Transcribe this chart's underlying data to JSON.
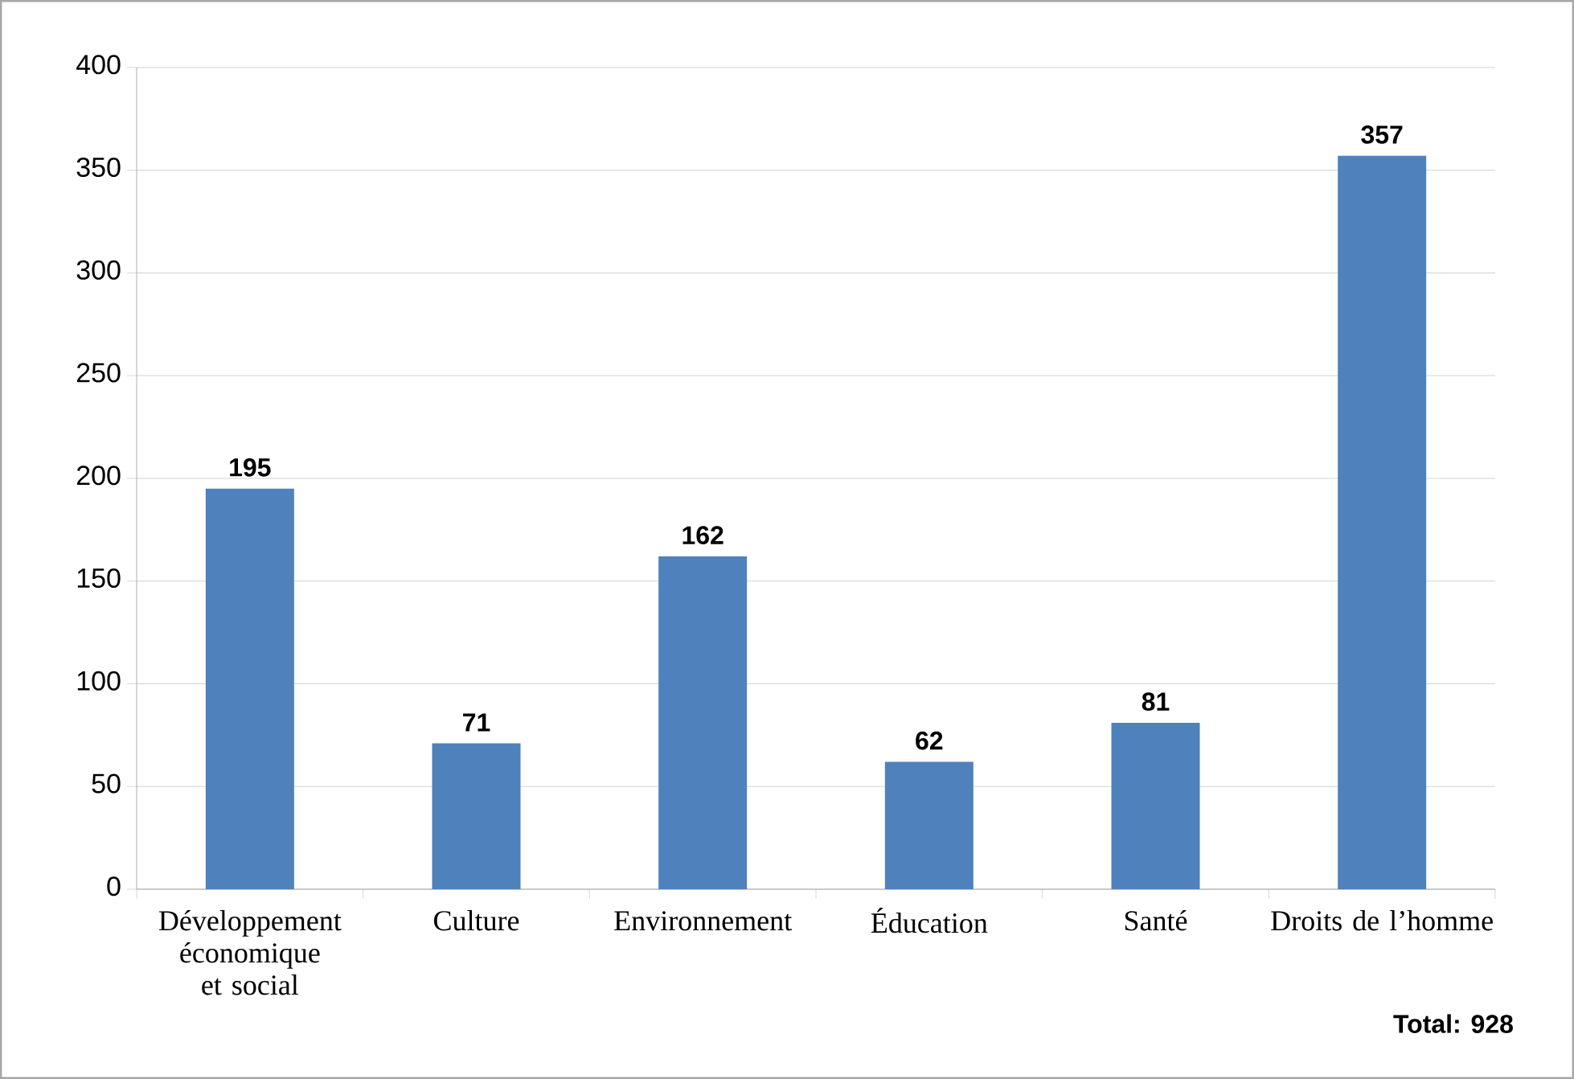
{
  "chart_data": {
    "type": "bar",
    "categories": [
      "Développement économique et social",
      "Culture",
      "Environnement",
      "Éducation",
      "Santé",
      "Droits de l’homme"
    ],
    "values": [
      195,
      71,
      162,
      62,
      81,
      357
    ],
    "color": "#4f81bd",
    "ylim": [
      0,
      400
    ],
    "yticks": [
      0,
      50,
      100,
      150,
      200,
      250,
      300,
      350,
      400
    ],
    "grid": "y",
    "data_labels": true,
    "annotations": [
      "Total: 928"
    ]
  }
}
